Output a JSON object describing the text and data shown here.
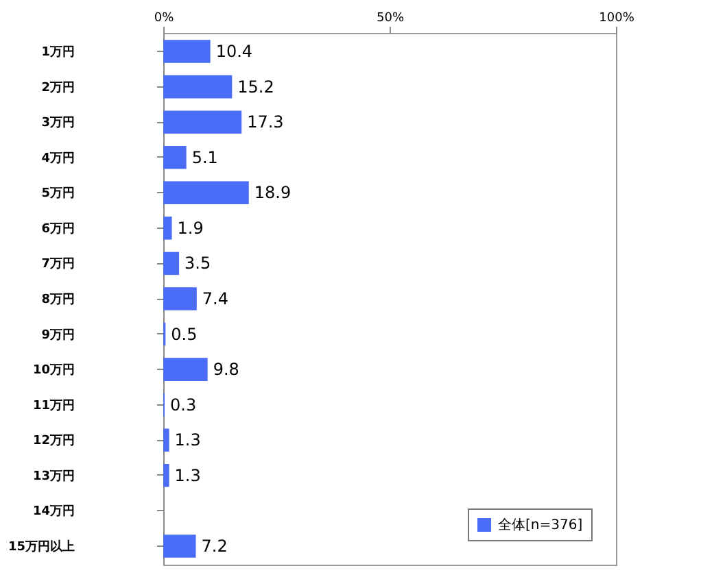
{
  "chart_data": {
    "type": "bar",
    "orientation": "horizontal",
    "categories": [
      "1万円",
      "2万円",
      "3万円",
      "4万円",
      "5万円",
      "6万円",
      "7万円",
      "8万円",
      "9万円",
      "10万円",
      "11万円",
      "12万円",
      "13万円",
      "14万円",
      "15万円以上"
    ],
    "series": [
      {
        "name": "全体[n=376]",
        "color": "#4a6cf7",
        "values": [
          10.4,
          15.2,
          17.3,
          5.1,
          18.9,
          1.9,
          3.5,
          7.4,
          0.5,
          9.8,
          0.3,
          1.3,
          1.3,
          null,
          7.2
        ]
      }
    ],
    "xlim": [
      0,
      100
    ],
    "xticks": [
      {
        "value": 0,
        "label": "0%"
      },
      {
        "value": 50,
        "label": "50%"
      },
      {
        "value": 100,
        "label": "100%"
      }
    ],
    "data_labels": true,
    "legend": "bottom right",
    "grid": false
  }
}
